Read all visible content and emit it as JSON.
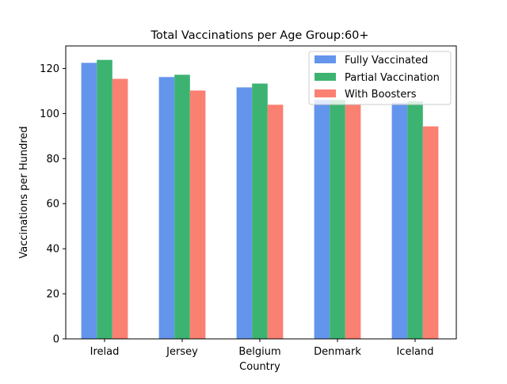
{
  "chart_data": {
    "type": "bar",
    "title": "Total Vaccinations per Age Group:60+",
    "xlabel": "Country",
    "ylabel": "Vaccinations per Hundred",
    "categories": [
      "Irelad",
      "Jersey",
      "Belgium",
      "Denmark",
      "Iceland"
    ],
    "series": [
      {
        "name": "Fully Vaccinated",
        "color": "#6495ED",
        "values": [
          122.5,
          116.2,
          111.6,
          106.0,
          104.8
        ]
      },
      {
        "name": "Partial Vaccination",
        "color": "#3CB371",
        "values": [
          123.8,
          117.2,
          113.3,
          106.0,
          105.4
        ]
      },
      {
        "name": "With Boosters",
        "color": "#FA8072",
        "values": [
          115.4,
          110.2,
          103.9,
          103.9,
          94.3
        ]
      }
    ],
    "ylim": [
      0,
      130
    ],
    "yticks": [
      0,
      20,
      40,
      60,
      80,
      100,
      120
    ],
    "grid": false,
    "legend_position": "top-right"
  }
}
